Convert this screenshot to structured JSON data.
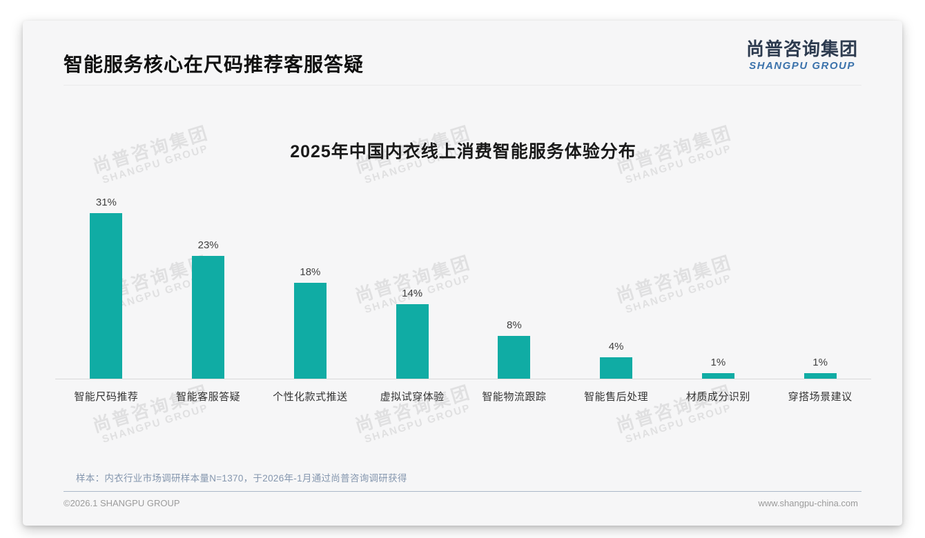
{
  "header": {
    "title": "智能服务核心在尺码推荐客服答疑"
  },
  "brand": {
    "name_cn": "尚普咨询集团",
    "name_en": "SHANGPU GROUP",
    "color_cn": "#2d3b4f",
    "color_en": "#3b72ab"
  },
  "chart_data": {
    "type": "bar",
    "title": "2025年中国内衣线上消费智能服务体验分布",
    "categories": [
      "智能尺码推荐",
      "智能客服答疑",
      "个性化款式推送",
      "虚拟试穿体验",
      "智能物流跟踪",
      "智能售后处理",
      "材质成分识别",
      "穿搭场景建议"
    ],
    "values": [
      31,
      23,
      18,
      14,
      8,
      4,
      1,
      1
    ],
    "value_labels": [
      "31%",
      "23%",
      "18%",
      "14%",
      "8%",
      "4%",
      "1%",
      "1%"
    ],
    "unit": "%",
    "bar_color": "#10aca4",
    "ylim": [
      0,
      33
    ],
    "grid": false,
    "legend": "none",
    "xlabel": "",
    "ylabel": ""
  },
  "watermark": {
    "line1": "尚普咨询集团",
    "line2": "SHANGPU GROUP"
  },
  "footer": {
    "note": "样本：内衣行业市场调研样本量N=1370，于2026年-1月通过尚普咨询调研获得",
    "copyright": "©2026.1 SHANGPU GROUP",
    "website": "www.shangpu-china.com"
  }
}
